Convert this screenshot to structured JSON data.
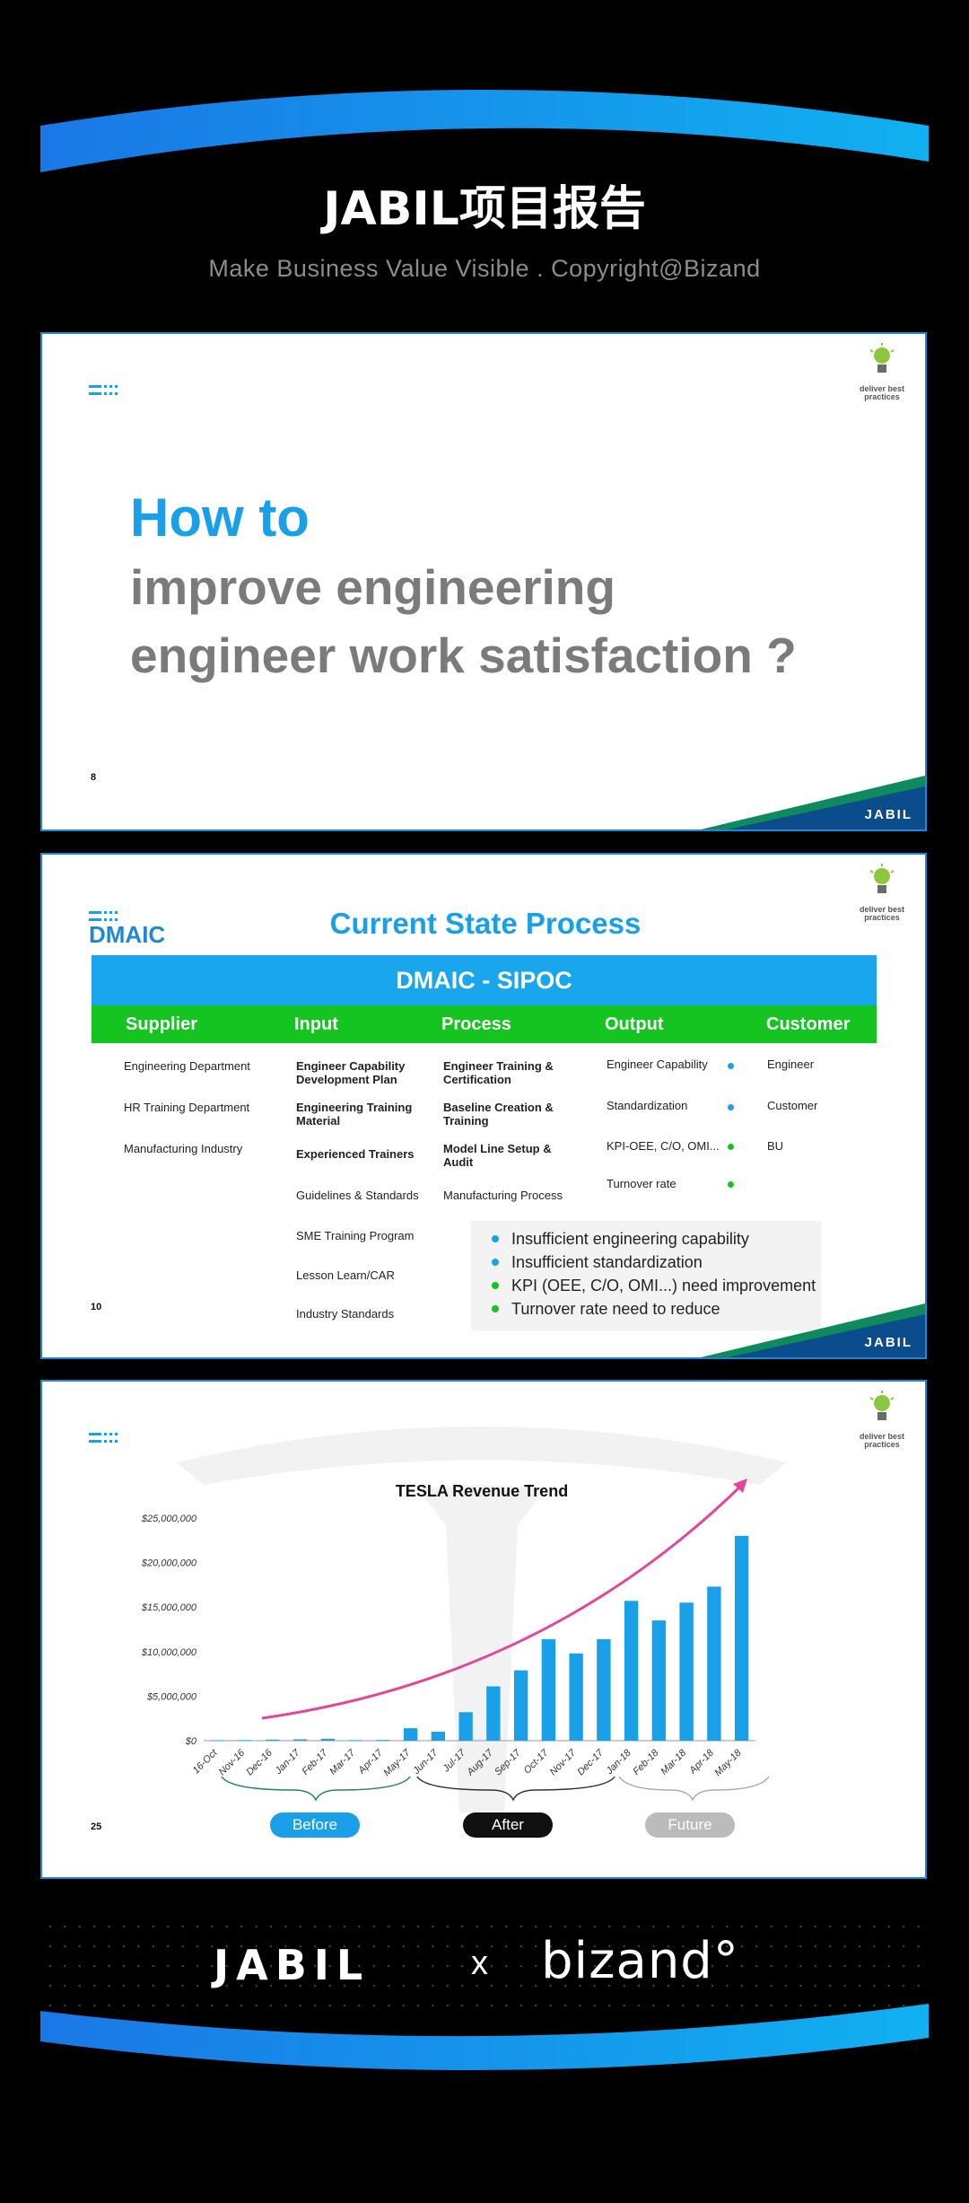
{
  "header": {
    "title": "JABIL项目报告",
    "subtitle": "Make Business Value Visible . Copyright@Bizand"
  },
  "brand_colors": {
    "blue": "#1aa0e8",
    "green": "#15c321",
    "dark_blue": "#0b4d8c",
    "teal": "#0f8a5f"
  },
  "slide_common": {
    "badge_text": "deliver best practices",
    "corner_logo": "JABIL"
  },
  "slide1": {
    "number": "8",
    "line1": "How to",
    "line2": "improve engineering",
    "line3": "engineer work satisfaction ?"
  },
  "slide2": {
    "number": "10",
    "logo": "DMAIC",
    "title": "Current State Process",
    "band": "DMAIC - SIPOC",
    "headers": [
      "Supplier",
      "Input",
      "Process",
      "Output",
      "Customer"
    ],
    "supplier": [
      "Engineering Department",
      "HR Training Department",
      "Manufacturing Industry"
    ],
    "input": [
      "Engineer Capability Development Plan",
      "Engineering Training Material",
      "Experienced Trainers",
      "Guidelines & Standards",
      "SME Training Program",
      "Lesson Learn/CAR",
      "Industry Standards"
    ],
    "process": [
      "Engineer Training & Certification",
      "Baseline Creation & Training",
      "Model Line Setup & Audit",
      "Manufacturing Process"
    ],
    "output": [
      "Engineer Capability",
      "Standardization",
      "KPI-OEE, C/O, OMI...",
      "Turnover rate"
    ],
    "customer": [
      "Engineer",
      "Customer",
      "BU"
    ],
    "callout": [
      "Insufficient engineering capability",
      "Insufficient standardization",
      "KPI (OEE, C/O, OMI...) need improvement",
      "Turnover rate need to reduce"
    ]
  },
  "slide3": {
    "number": "25",
    "pills": [
      "Before",
      "After",
      "Future"
    ]
  },
  "chart_data": {
    "type": "bar",
    "title": "TESLA Revenue Trend",
    "xlabel": "",
    "ylabel": "",
    "ylim": [
      0,
      25000000
    ],
    "yticks": [
      "$0",
      "$5,000,000",
      "$10,000,000",
      "$15,000,000",
      "$20,000,000",
      "$25,000,000"
    ],
    "categories": [
      "16-Oct",
      "Nov-16",
      "Dec-16",
      "Jan-17",
      "Feb-17",
      "Mar-17",
      "Apr-17",
      "May-17",
      "Jun-17",
      "Jul-17",
      "Aug-17",
      "Sep-17",
      "Oct-17",
      "Nov-17",
      "Dec-17",
      "Jan-18",
      "Feb-18",
      "Mar-18",
      "Apr-18",
      "May-18"
    ],
    "values": [
      50000,
      60000,
      120000,
      150000,
      200000,
      60000,
      80000,
      1400000,
      1000000,
      3200000,
      6100000,
      7900000,
      11400000,
      9800000,
      11400000,
      15700000,
      13500000,
      15500000,
      17300000,
      23000000
    ],
    "grid": false,
    "legend": "none",
    "trend_arrow": true
  },
  "footer": {
    "left_logo": "JABIL",
    "separator": "x",
    "right_logo": "bizand°"
  }
}
